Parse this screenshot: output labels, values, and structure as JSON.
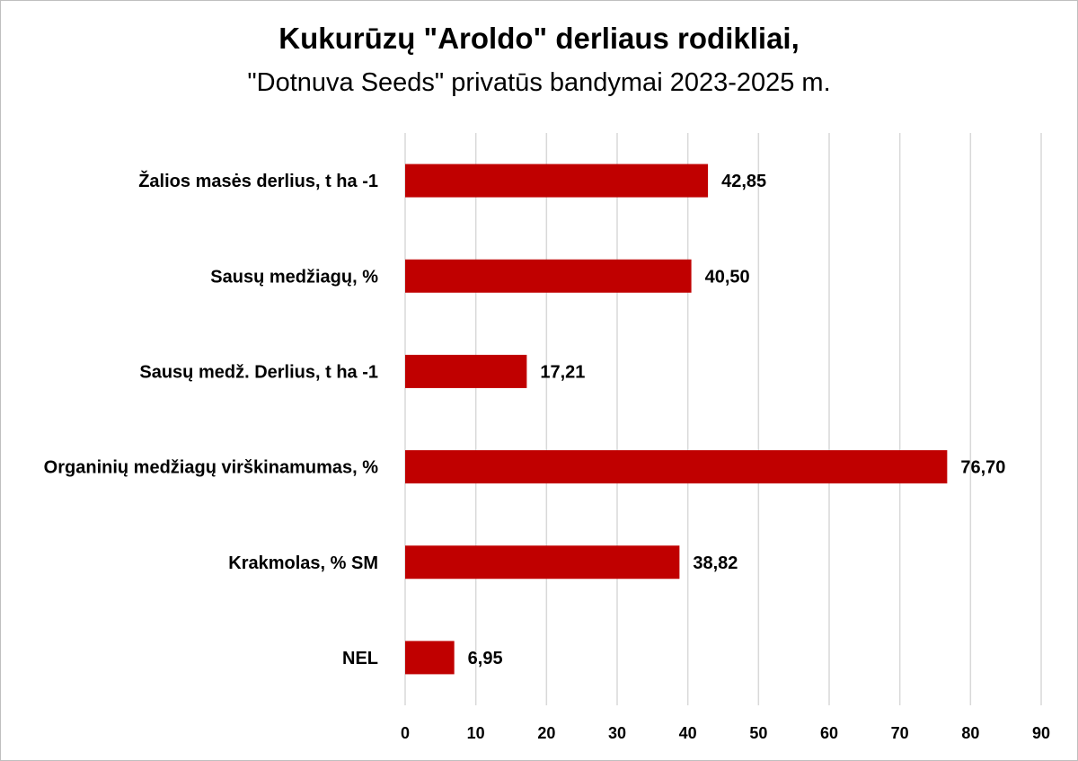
{
  "chart_data": {
    "type": "bar",
    "orientation": "horizontal",
    "title": "Kukurūzų \"Aroldo\" derliaus rodikliai,",
    "subtitle": "\"Dotnuva Seeds\" privatūs bandymai 2023-2025 m.",
    "categories": [
      "Žalios masės derlius, t ha -1",
      "Sausų medžiagų, %",
      "Sausų medž. Derlius, t ha -1",
      "Organinių medžiagų virškinamumas, %",
      "Krakmolas, % SM",
      "NEL"
    ],
    "values": [
      42.85,
      40.5,
      17.21,
      76.7,
      38.82,
      6.95
    ],
    "data_labels": [
      "42,85",
      "40,50",
      "17,21",
      "76,70",
      "38,82",
      "6,95"
    ],
    "xlim": [
      0,
      90
    ],
    "ticks": [
      0,
      10,
      20,
      30,
      40,
      50,
      60,
      70,
      80,
      90
    ],
    "grid": "vertical",
    "bar_color": "#c00000",
    "grid_color": "#d9d9d9"
  }
}
